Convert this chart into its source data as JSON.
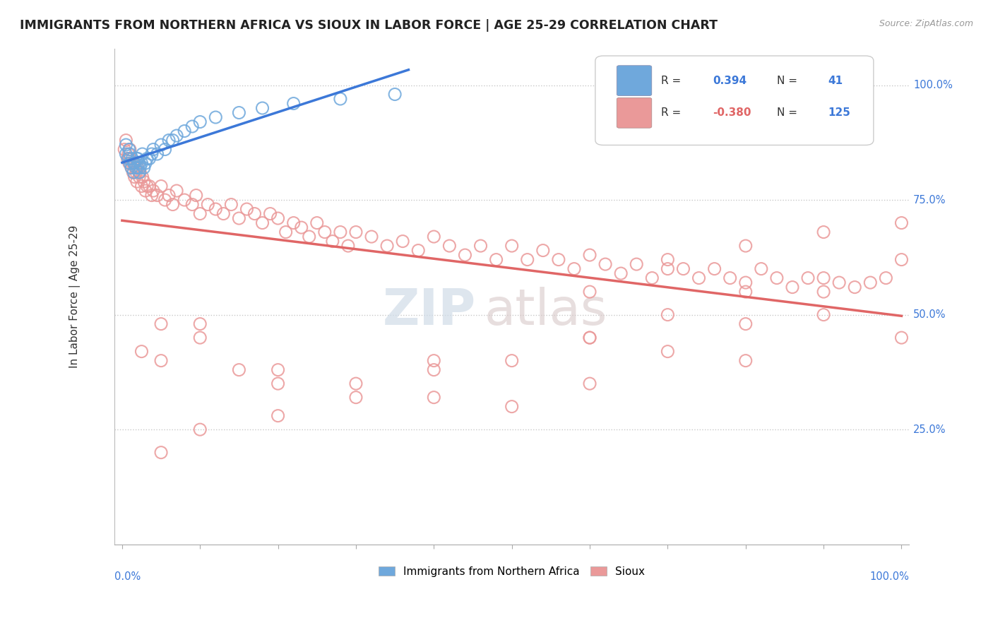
{
  "title": "IMMIGRANTS FROM NORTHERN AFRICA VS SIOUX IN LABOR FORCE | AGE 25-29 CORRELATION CHART",
  "source": "Source: ZipAtlas.com",
  "ylabel": "In Labor Force | Age 25-29",
  "ytick_labels": [
    "25.0%",
    "50.0%",
    "75.0%",
    "100.0%"
  ],
  "ytick_values": [
    0.25,
    0.5,
    0.75,
    1.0
  ],
  "blue_color": "#6fa8dc",
  "pink_color": "#ea9999",
  "blue_line_color": "#3c78d8",
  "pink_line_color": "#e06666",
  "blue_r": "0.394",
  "blue_n": "41",
  "pink_r": "-0.380",
  "pink_n": "125",
  "watermark_zip": "ZIP",
  "watermark_atlas": "atlas",
  "blue_points_x": [
    0.005,
    0.005,
    0.008,
    0.009,
    0.01,
    0.01,
    0.012,
    0.013,
    0.015,
    0.015,
    0.016,
    0.018,
    0.019,
    0.02,
    0.02,
    0.022,
    0.022,
    0.023,
    0.025,
    0.026,
    0.028,
    0.03,
    0.032,
    0.035,
    0.038,
    0.04,
    0.045,
    0.05,
    0.055,
    0.06,
    0.065,
    0.07,
    0.08,
    0.09,
    0.1,
    0.12,
    0.15,
    0.18,
    0.22,
    0.28,
    0.35
  ],
  "blue_points_y": [
    0.87,
    0.85,
    0.84,
    0.86,
    0.83,
    0.85,
    0.82,
    0.84,
    0.81,
    0.83,
    0.83,
    0.82,
    0.84,
    0.82,
    0.84,
    0.81,
    0.83,
    0.82,
    0.83,
    0.85,
    0.82,
    0.83,
    0.84,
    0.84,
    0.85,
    0.86,
    0.85,
    0.87,
    0.86,
    0.88,
    0.88,
    0.89,
    0.9,
    0.91,
    0.92,
    0.93,
    0.94,
    0.95,
    0.96,
    0.97,
    0.98
  ],
  "pink_points_x": [
    0.003,
    0.005,
    0.007,
    0.008,
    0.009,
    0.01,
    0.01,
    0.012,
    0.013,
    0.014,
    0.015,
    0.016,
    0.017,
    0.018,
    0.019,
    0.02,
    0.022,
    0.023,
    0.025,
    0.026,
    0.028,
    0.03,
    0.032,
    0.035,
    0.038,
    0.04,
    0.045,
    0.05,
    0.055,
    0.06,
    0.065,
    0.07,
    0.08,
    0.09,
    0.095,
    0.1,
    0.11,
    0.12,
    0.13,
    0.14,
    0.15,
    0.16,
    0.17,
    0.18,
    0.19,
    0.2,
    0.21,
    0.22,
    0.23,
    0.24,
    0.25,
    0.26,
    0.27,
    0.28,
    0.29,
    0.3,
    0.32,
    0.34,
    0.36,
    0.38,
    0.4,
    0.42,
    0.44,
    0.46,
    0.48,
    0.5,
    0.52,
    0.54,
    0.56,
    0.58,
    0.6,
    0.62,
    0.64,
    0.66,
    0.68,
    0.7,
    0.72,
    0.74,
    0.76,
    0.78,
    0.8,
    0.82,
    0.84,
    0.86,
    0.88,
    0.9,
    0.92,
    0.94,
    0.96,
    0.98,
    1.0,
    0.025,
    0.05,
    0.1,
    0.15,
    0.2,
    0.3,
    0.4,
    0.5,
    0.6,
    0.7,
    0.8,
    0.9,
    0.05,
    0.1,
    0.2,
    0.3,
    0.4,
    0.5,
    0.6,
    0.7,
    0.8,
    0.9,
    0.6,
    0.7,
    0.8,
    0.9,
    1.0,
    0.05,
    0.1,
    0.2,
    0.4,
    0.6,
    0.8,
    1.0
  ],
  "pink_points_y": [
    0.86,
    0.88,
    0.84,
    0.85,
    0.83,
    0.84,
    0.86,
    0.82,
    0.83,
    0.81,
    0.83,
    0.8,
    0.82,
    0.81,
    0.79,
    0.82,
    0.8,
    0.81,
    0.78,
    0.8,
    0.79,
    0.77,
    0.78,
    0.78,
    0.76,
    0.77,
    0.76,
    0.78,
    0.75,
    0.76,
    0.74,
    0.77,
    0.75,
    0.74,
    0.76,
    0.72,
    0.74,
    0.73,
    0.72,
    0.74,
    0.71,
    0.73,
    0.72,
    0.7,
    0.72,
    0.71,
    0.68,
    0.7,
    0.69,
    0.67,
    0.7,
    0.68,
    0.66,
    0.68,
    0.65,
    0.68,
    0.67,
    0.65,
    0.66,
    0.64,
    0.67,
    0.65,
    0.63,
    0.65,
    0.62,
    0.65,
    0.62,
    0.64,
    0.62,
    0.6,
    0.63,
    0.61,
    0.59,
    0.61,
    0.58,
    0.62,
    0.6,
    0.58,
    0.6,
    0.58,
    0.57,
    0.6,
    0.58,
    0.56,
    0.58,
    0.55,
    0.57,
    0.56,
    0.57,
    0.58,
    0.62,
    0.42,
    0.48,
    0.45,
    0.38,
    0.35,
    0.32,
    0.4,
    0.3,
    0.45,
    0.42,
    0.48,
    0.5,
    0.4,
    0.48,
    0.38,
    0.35,
    0.38,
    0.4,
    0.45,
    0.5,
    0.55,
    0.58,
    0.55,
    0.6,
    0.65,
    0.68,
    0.7,
    0.2,
    0.25,
    0.28,
    0.32,
    0.35,
    0.4,
    0.45
  ]
}
